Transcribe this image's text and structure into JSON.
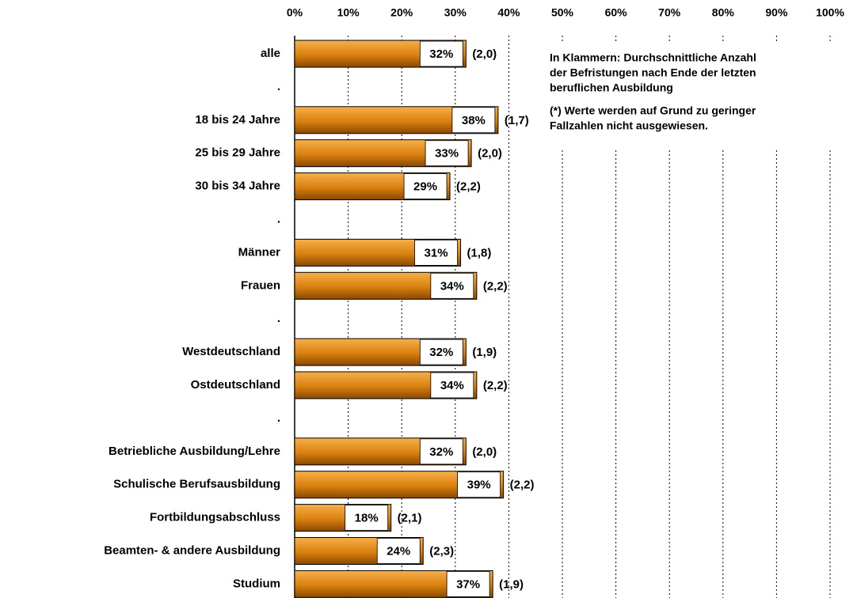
{
  "chart_data": {
    "type": "bar",
    "orientation": "horizontal",
    "categories": [
      "alle",
      ".",
      "18 bis 24 Jahre",
      "25 bis 29 Jahre",
      "30 bis 34 Jahre",
      ".",
      "Männer",
      "Frauen",
      ".",
      "Westdeutschland",
      "Ostdeutschland",
      ".",
      "Betriebliche Ausbildung/Lehre",
      "Schulische Berufsausbildung",
      "Fortbildungsabschluss",
      "Beamten- & andere Ausbildung",
      "Studium"
    ],
    "values": [
      32,
      null,
      38,
      33,
      29,
      null,
      31,
      34,
      null,
      32,
      34,
      null,
      32,
      39,
      18,
      24,
      37
    ],
    "value_labels": [
      "32%",
      null,
      "38%",
      "33%",
      "29%",
      null,
      "31%",
      "34%",
      null,
      "32%",
      "34%",
      null,
      "32%",
      "39%",
      "18%",
      "24%",
      "37%"
    ],
    "annotations": [
      "(2,0)",
      null,
      "(1,7)",
      "(2,0)",
      "(2,2)",
      null,
      "(1,8)",
      "(2,2)",
      null,
      "(1,9)",
      "(2,2)",
      null,
      "(2,0)",
      "(2,2)",
      "(2,1)",
      "(2,3)",
      "(1,9)"
    ],
    "note": [
      "In Klammern: Durchschnittliche Anzahl",
      "der Befristungen nach Ende der letzten",
      "beruflichen Ausbildung",
      "(*) Werte werden auf Grund zu geringer",
      "Fallzahlen nicht ausgewiesen."
    ],
    "color": "#e08a1a",
    "xlim": [
      0,
      100
    ],
    "xticks": [
      {
        "value": 0,
        "label": "0%"
      },
      {
        "value": 10,
        "label": "10%"
      },
      {
        "value": 20,
        "label": "20%"
      },
      {
        "value": 30,
        "label": "30%"
      },
      {
        "value": 40,
        "label": "40%"
      },
      {
        "value": 50,
        "label": "50%"
      },
      {
        "value": 60,
        "label": "60%"
      },
      {
        "value": 70,
        "label": "70%"
      },
      {
        "value": 80,
        "label": "80%"
      },
      {
        "value": 90,
        "label": "90%"
      },
      {
        "value": 100,
        "label": "100%"
      }
    ],
    "grid": true
  }
}
